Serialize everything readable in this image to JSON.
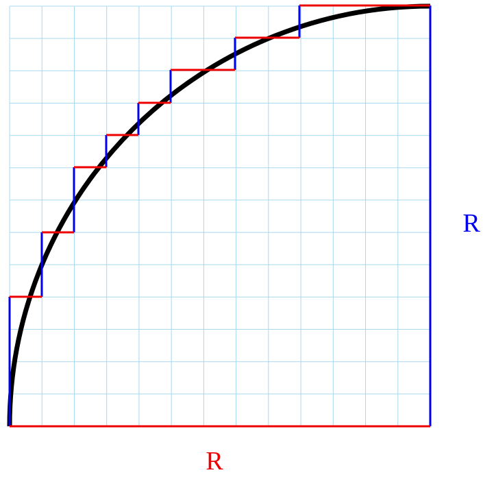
{
  "labels": {
    "vertical": "R",
    "horizontal": "R"
  }
}
